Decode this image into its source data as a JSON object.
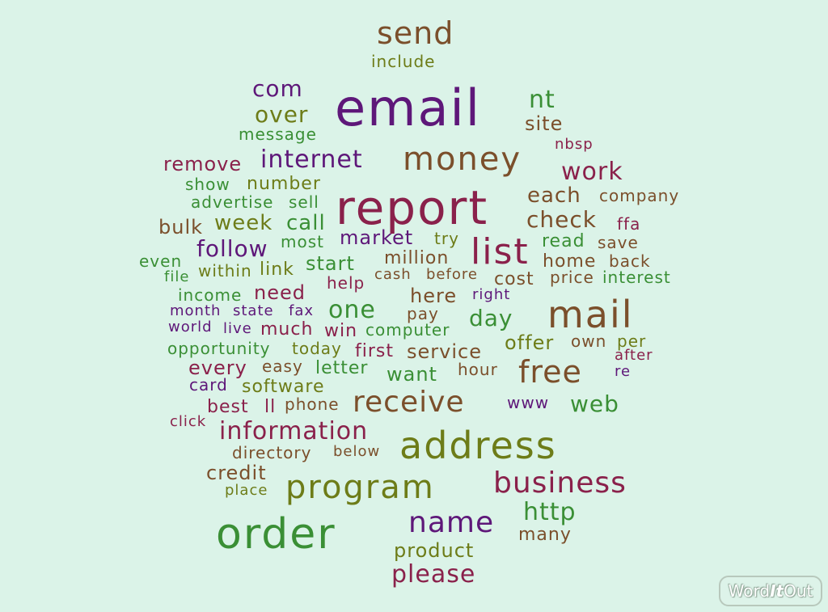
{
  "background": "#dbf3e8",
  "colors": {
    "brown": "#7b4f2b",
    "purple": "#5e1779",
    "green": "#3a8f35",
    "olive": "#6d7c18",
    "maroon": "#8a214b",
    "olive_green": "#4f8a2a"
  },
  "logo": {
    "part1": "Word",
    "part2": "It",
    "part3": "Out"
  },
  "words": [
    {
      "t": "send",
      "c": "brown"
    },
    {
      "t": "include",
      "c": "olive"
    },
    {
      "t": "com",
      "c": "purple"
    },
    {
      "t": "email",
      "c": "purple"
    },
    {
      "t": "nt",
      "c": "green"
    },
    {
      "t": "over",
      "c": "olive"
    },
    {
      "t": "site",
      "c": "brown"
    },
    {
      "t": "message",
      "c": "green"
    },
    {
      "t": "nbsp",
      "c": "maroon"
    },
    {
      "t": "remove",
      "c": "maroon"
    },
    {
      "t": "internet",
      "c": "purple"
    },
    {
      "t": "money",
      "c": "brown"
    },
    {
      "t": "work",
      "c": "maroon"
    },
    {
      "t": "show",
      "c": "green"
    },
    {
      "t": "number",
      "c": "olive"
    },
    {
      "t": "report",
      "c": "maroon"
    },
    {
      "t": "each",
      "c": "brown"
    },
    {
      "t": "company",
      "c": "brown"
    },
    {
      "t": "advertise",
      "c": "green"
    },
    {
      "t": "sell",
      "c": "green"
    },
    {
      "t": "bulk",
      "c": "brown"
    },
    {
      "t": "week",
      "c": "olive"
    },
    {
      "t": "call",
      "c": "green"
    },
    {
      "t": "check",
      "c": "brown"
    },
    {
      "t": "ffa",
      "c": "maroon"
    },
    {
      "t": "follow",
      "c": "purple"
    },
    {
      "t": "most",
      "c": "green"
    },
    {
      "t": "market",
      "c": "purple"
    },
    {
      "t": "try",
      "c": "olive"
    },
    {
      "t": "list",
      "c": "maroon"
    },
    {
      "t": "read",
      "c": "green"
    },
    {
      "t": "save",
      "c": "brown"
    },
    {
      "t": "even",
      "c": "green"
    },
    {
      "t": "within",
      "c": "olive"
    },
    {
      "t": "link",
      "c": "olive"
    },
    {
      "t": "start",
      "c": "green"
    },
    {
      "t": "million",
      "c": "brown"
    },
    {
      "t": "home",
      "c": "brown"
    },
    {
      "t": "back",
      "c": "brown"
    },
    {
      "t": "file",
      "c": "green"
    },
    {
      "t": "cash",
      "c": "brown"
    },
    {
      "t": "before",
      "c": "brown"
    },
    {
      "t": "cost",
      "c": "brown"
    },
    {
      "t": "price",
      "c": "brown"
    },
    {
      "t": "interest",
      "c": "green"
    },
    {
      "t": "income",
      "c": "green"
    },
    {
      "t": "need",
      "c": "maroon"
    },
    {
      "t": "help",
      "c": "maroon"
    },
    {
      "t": "here",
      "c": "brown"
    },
    {
      "t": "right",
      "c": "purple"
    },
    {
      "t": "month",
      "c": "purple"
    },
    {
      "t": "state",
      "c": "purple"
    },
    {
      "t": "fax",
      "c": "purple"
    },
    {
      "t": "one",
      "c": "green"
    },
    {
      "t": "pay",
      "c": "brown"
    },
    {
      "t": "day",
      "c": "green"
    },
    {
      "t": "mail",
      "c": "brown"
    },
    {
      "t": "world",
      "c": "purple"
    },
    {
      "t": "live",
      "c": "purple"
    },
    {
      "t": "much",
      "c": "maroon"
    },
    {
      "t": "win",
      "c": "maroon"
    },
    {
      "t": "computer",
      "c": "green"
    },
    {
      "t": "own",
      "c": "brown"
    },
    {
      "t": "per",
      "c": "olive"
    },
    {
      "t": "opportunity",
      "c": "green"
    },
    {
      "t": "today",
      "c": "olive"
    },
    {
      "t": "first",
      "c": "maroon"
    },
    {
      "t": "service",
      "c": "brown"
    },
    {
      "t": "offer",
      "c": "olive"
    },
    {
      "t": "after",
      "c": "maroon"
    },
    {
      "t": "every",
      "c": "maroon"
    },
    {
      "t": "easy",
      "c": "brown"
    },
    {
      "t": "letter",
      "c": "green"
    },
    {
      "t": "want",
      "c": "green"
    },
    {
      "t": "hour",
      "c": "brown"
    },
    {
      "t": "free",
      "c": "brown"
    },
    {
      "t": "re",
      "c": "purple"
    },
    {
      "t": "card",
      "c": "purple"
    },
    {
      "t": "software",
      "c": "olive"
    },
    {
      "t": "best",
      "c": "maroon"
    },
    {
      "t": "ll",
      "c": "maroon"
    },
    {
      "t": "phone",
      "c": "brown"
    },
    {
      "t": "receive",
      "c": "brown"
    },
    {
      "t": "www",
      "c": "purple"
    },
    {
      "t": "web",
      "c": "green"
    },
    {
      "t": "click",
      "c": "maroon"
    },
    {
      "t": "information",
      "c": "maroon"
    },
    {
      "t": "address",
      "c": "olive"
    },
    {
      "t": "directory",
      "c": "brown"
    },
    {
      "t": "below",
      "c": "brown"
    },
    {
      "t": "credit",
      "c": "brown"
    },
    {
      "t": "place",
      "c": "olive"
    },
    {
      "t": "program",
      "c": "olive"
    },
    {
      "t": "business",
      "c": "maroon"
    },
    {
      "t": "http",
      "c": "green"
    },
    {
      "t": "order",
      "c": "green"
    },
    {
      "t": "name",
      "c": "purple"
    },
    {
      "t": "many",
      "c": "brown"
    },
    {
      "t": "product",
      "c": "olive"
    },
    {
      "t": "please",
      "c": "maroon"
    }
  ]
}
